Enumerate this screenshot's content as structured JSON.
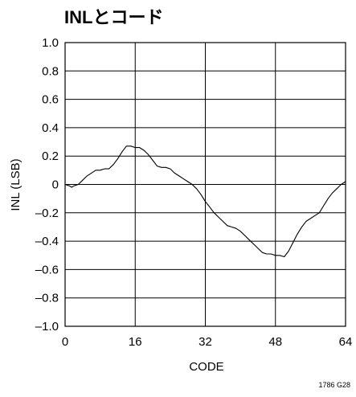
{
  "chart_data": {
    "type": "line",
    "title": "INLとコード",
    "xlabel": "CODE",
    "ylabel": "INL (LSB)",
    "xlim": [
      0,
      64
    ],
    "ylim": [
      -1.0,
      1.0
    ],
    "x_ticks": [
      0,
      16,
      32,
      48,
      64
    ],
    "x_tick_labels": [
      "0",
      "16",
      "32",
      "48",
      "64"
    ],
    "y_ticks": [
      1.0,
      0.8,
      0.6,
      0.4,
      0.2,
      0,
      -0.2,
      -0.4,
      -0.6,
      -0.8,
      -1.0
    ],
    "y_tick_labels": [
      "1.0",
      "0.8",
      "0.6",
      "0.4",
      "0.2",
      "0",
      "–0.2",
      "–0.4",
      "–0.6",
      "–0.8",
      "–1.0"
    ],
    "grid": true,
    "figure_id": "1786 G28",
    "series": [
      {
        "x": [
          0,
          1,
          1.5,
          2,
          3,
          4,
          5,
          6,
          7,
          8,
          9,
          10,
          11,
          12,
          13,
          14,
          15,
          16,
          17,
          18,
          19,
          20,
          21,
          22,
          23,
          24,
          25,
          26,
          27,
          28,
          29,
          30,
          31,
          32,
          33,
          34,
          35,
          36,
          37,
          38,
          39,
          40,
          41,
          42,
          43,
          44,
          45,
          46,
          47,
          48,
          49,
          50,
          51,
          52,
          53,
          54,
          55,
          56,
          57,
          58,
          59,
          60,
          61,
          62,
          63,
          64
        ],
        "y": [
          0.0,
          -0.01,
          -0.02,
          -0.01,
          0.0,
          0.03,
          0.06,
          0.08,
          0.1,
          0.1,
          0.11,
          0.11,
          0.14,
          0.18,
          0.23,
          0.27,
          0.27,
          0.26,
          0.26,
          0.24,
          0.21,
          0.17,
          0.13,
          0.12,
          0.12,
          0.11,
          0.08,
          0.06,
          0.04,
          0.02,
          0.0,
          -0.03,
          -0.07,
          -0.12,
          -0.16,
          -0.2,
          -0.23,
          -0.26,
          -0.29,
          -0.3,
          -0.31,
          -0.33,
          -0.36,
          -0.39,
          -0.42,
          -0.45,
          -0.48,
          -0.49,
          -0.49,
          -0.5,
          -0.5,
          -0.51,
          -0.47,
          -0.41,
          -0.35,
          -0.3,
          -0.26,
          -0.24,
          -0.22,
          -0.2,
          -0.15,
          -0.1,
          -0.06,
          -0.03,
          0.0,
          0.02
        ]
      }
    ]
  }
}
